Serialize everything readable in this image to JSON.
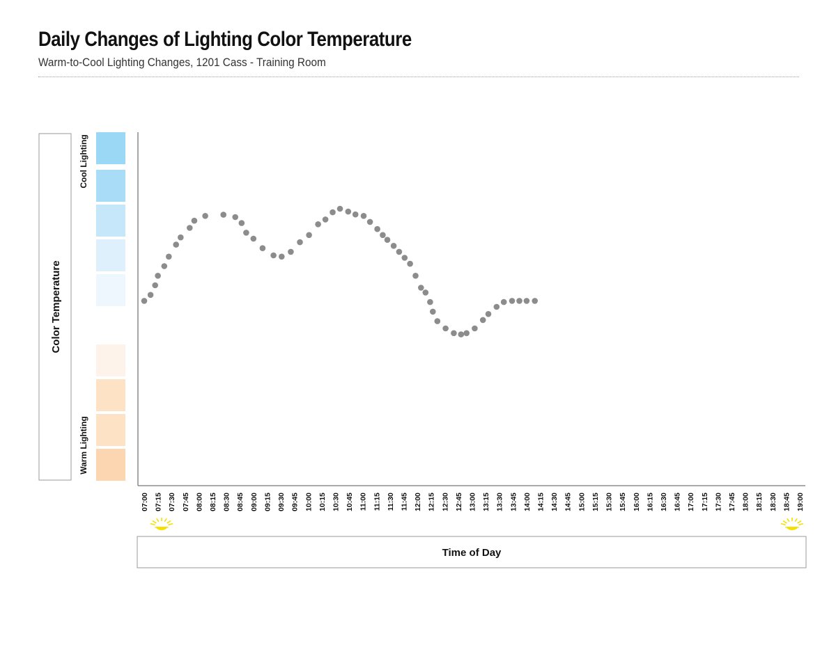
{
  "header": {
    "title": "Daily Changes of Lighting Color Temperature",
    "subtitle": "Warm-to-Cool Lighting Changes, 1201 Cass - Training Room"
  },
  "chart_data": {
    "type": "scatter",
    "title": "Daily Changes of Lighting Color Temperature",
    "subtitle": "Warm-to-Cool Lighting Changes, 1201 Cass - Training Room",
    "xlabel": "Time of Day",
    "ylabel": "Color Temperature",
    "y_scale_labels": {
      "top": "Cool Lighting",
      "bottom": "Warm Lighting"
    },
    "ylim": [
      -5,
      5
    ],
    "grid": false,
    "legend": "none",
    "x_ticks": [
      "07:00",
      "07:15",
      "07:30",
      "07:45",
      "08:00",
      "08:15",
      "08:30",
      "08:45",
      "09:00",
      "09:15",
      "09:30",
      "09:45",
      "10:00",
      "10:15",
      "10:30",
      "10:45",
      "11:00",
      "11:15",
      "11:30",
      "11:45",
      "12:00",
      "12:15",
      "12:30",
      "12:45",
      "13:00",
      "13:15",
      "13:30",
      "13:45",
      "14:00",
      "14:15",
      "14:30",
      "14:45",
      "15:00",
      "15:15",
      "15:30",
      "15:45",
      "16:00",
      "16:15",
      "16:30",
      "16:45",
      "17:00",
      "17:15",
      "17:30",
      "17:45",
      "18:00",
      "18:15",
      "18:30",
      "18:45",
      "19:00"
    ],
    "points": [
      {
        "x": "07:00",
        "y": 0.25
      },
      {
        "x": "07:07",
        "y": 0.5
      },
      {
        "x": "07:12",
        "y": 0.9
      },
      {
        "x": "07:15",
        "y": 1.3
      },
      {
        "x": "07:22",
        "y": 1.7
      },
      {
        "x": "07:27",
        "y": 2.1
      },
      {
        "x": "07:35",
        "y": 2.6
      },
      {
        "x": "07:40",
        "y": 2.9
      },
      {
        "x": "07:50",
        "y": 3.3
      },
      {
        "x": "07:55",
        "y": 3.6
      },
      {
        "x": "08:07",
        "y": 3.8
      },
      {
        "x": "08:27",
        "y": 3.85
      },
      {
        "x": "08:40",
        "y": 3.75
      },
      {
        "x": "08:47",
        "y": 3.5
      },
      {
        "x": "08:52",
        "y": 3.1
      },
      {
        "x": "09:00",
        "y": 2.85
      },
      {
        "x": "09:10",
        "y": 2.45
      },
      {
        "x": "09:22",
        "y": 2.15
      },
      {
        "x": "09:31",
        "y": 2.1
      },
      {
        "x": "09:41",
        "y": 2.3
      },
      {
        "x": "09:51",
        "y": 2.7
      },
      {
        "x": "10:01",
        "y": 3.0
      },
      {
        "x": "10:11",
        "y": 3.45
      },
      {
        "x": "10:19",
        "y": 3.65
      },
      {
        "x": "10:27",
        "y": 3.95
      },
      {
        "x": "10:35",
        "y": 4.1
      },
      {
        "x": "10:44",
        "y": 3.98
      },
      {
        "x": "10:52",
        "y": 3.86
      },
      {
        "x": "11:01",
        "y": 3.8
      },
      {
        "x": "11:08",
        "y": 3.55
      },
      {
        "x": "11:16",
        "y": 3.25
      },
      {
        "x": "11:22",
        "y": 3.0
      },
      {
        "x": "11:27",
        "y": 2.8
      },
      {
        "x": "11:34",
        "y": 2.55
      },
      {
        "x": "11:40",
        "y": 2.3
      },
      {
        "x": "11:46",
        "y": 2.05
      },
      {
        "x": "11:52",
        "y": 1.8
      },
      {
        "x": "11:58",
        "y": 1.3
      },
      {
        "x": "12:04",
        "y": 0.8
      },
      {
        "x": "12:09",
        "y": 0.6
      },
      {
        "x": "12:14",
        "y": 0.2
      },
      {
        "x": "12:17",
        "y": -0.2
      },
      {
        "x": "12:22",
        "y": -0.6
      },
      {
        "x": "12:31",
        "y": -0.9
      },
      {
        "x": "12:40",
        "y": -1.1
      },
      {
        "x": "12:48",
        "y": -1.15
      },
      {
        "x": "12:54",
        "y": -1.1
      },
      {
        "x": "13:03",
        "y": -0.9
      },
      {
        "x": "13:12",
        "y": -0.55
      },
      {
        "x": "13:18",
        "y": -0.3
      },
      {
        "x": "13:27",
        "y": 0.0
      },
      {
        "x": "13:35",
        "y": 0.2
      },
      {
        "x": "13:44",
        "y": 0.25
      },
      {
        "x": "13:52",
        "y": 0.25
      },
      {
        "x": "14:00",
        "y": 0.25
      },
      {
        "x": "14:09",
        "y": 0.25
      }
    ]
  },
  "bands": {
    "cool": [
      "#9ad8f5",
      "#a9dcf7",
      "#c6e7f9",
      "#ddf0fb",
      "#eef7fd"
    ],
    "warm": [
      "#fdf3ea",
      "#fde2c6",
      "#fde2c6",
      "#fcd6b0"
    ]
  },
  "sun_color": "#f5e100",
  "axis_color": "#777777",
  "point_color": "#8c8c8c"
}
